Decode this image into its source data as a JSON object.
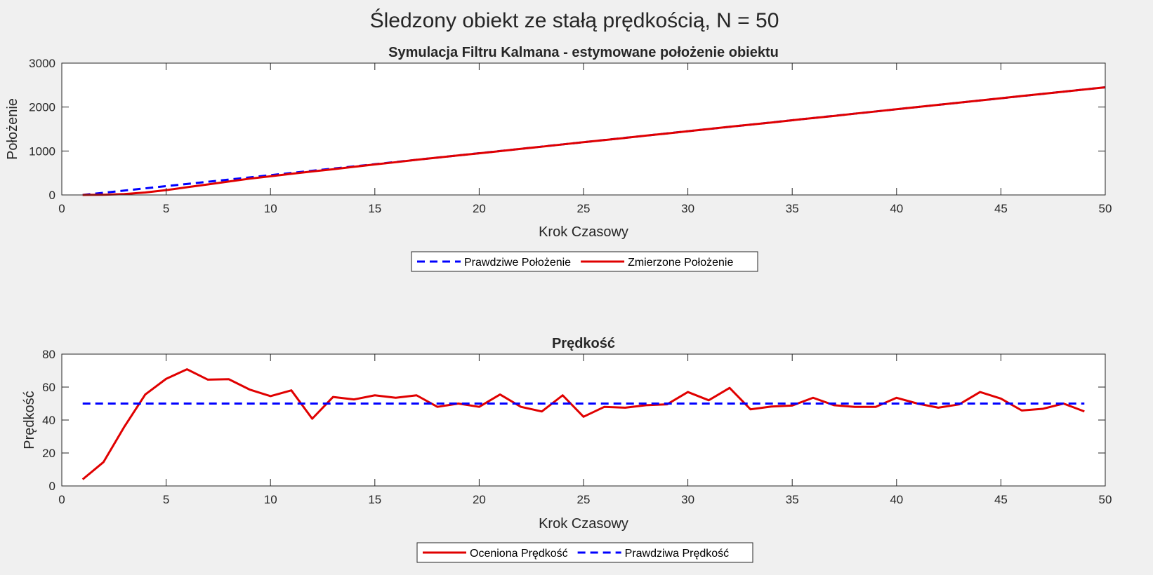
{
  "figure": {
    "title": "Śledzony obiekt ze stałą prędkością, N = 50"
  },
  "chart_data": [
    {
      "type": "line",
      "title": "Symulacja Filtru Kalmana - estymowane położenie obiektu",
      "xlabel": "Krok Czasowy",
      "ylabel": "Położenie",
      "xlim": [
        0,
        50
      ],
      "ylim": [
        0,
        3000
      ],
      "xticks": [
        0,
        5,
        10,
        15,
        20,
        25,
        30,
        35,
        40,
        45,
        50
      ],
      "yticks": [
        0,
        1000,
        2000,
        3000
      ],
      "grid": false,
      "legend_placement": "bottom-outside",
      "series": [
        {
          "name": "Prawdziwe Położenie",
          "color": "#0000ff",
          "style": "dashed",
          "x": [
            1,
            2,
            3,
            4,
            5,
            6,
            7,
            8,
            9,
            10,
            11,
            12,
            13,
            14,
            15,
            16,
            17,
            18,
            19,
            20,
            21,
            22,
            23,
            24,
            25,
            26,
            27,
            28,
            29,
            30,
            31,
            32,
            33,
            34,
            35,
            36,
            37,
            38,
            39,
            40,
            41,
            42,
            43,
            44,
            45,
            46,
            47,
            48,
            49,
            50
          ],
          "y": [
            0,
            50,
            100,
            150,
            200,
            250,
            300,
            350,
            400,
            450,
            500,
            550,
            600,
            650,
            700,
            750,
            800,
            850,
            900,
            950,
            1000,
            1050,
            1100,
            1150,
            1200,
            1250,
            1300,
            1350,
            1400,
            1450,
            1500,
            1550,
            1600,
            1650,
            1700,
            1750,
            1800,
            1850,
            1900,
            1950,
            2000,
            2050,
            2100,
            2150,
            2200,
            2250,
            2300,
            2350,
            2400,
            2450
          ]
        },
        {
          "name": "Zmierzone Położenie",
          "color": "#e00000",
          "style": "solid",
          "x": [
            1,
            2,
            3,
            4,
            5,
            6,
            7,
            8,
            9,
            10,
            11,
            12,
            13,
            14,
            15,
            16,
            17,
            18,
            19,
            20,
            21,
            22,
            23,
            24,
            25,
            26,
            27,
            28,
            29,
            30,
            31,
            32,
            33,
            34,
            35,
            36,
            37,
            38,
            39,
            40,
            41,
            42,
            43,
            44,
            45,
            46,
            47,
            48,
            49,
            50
          ],
          "y": [
            0,
            5,
            20,
            55,
            110,
            175,
            240,
            305,
            370,
            425,
            480,
            535,
            585,
            640,
            695,
            745,
            800,
            850,
            900,
            948,
            998,
            1050,
            1098,
            1150,
            1200,
            1248,
            1298,
            1350,
            1398,
            1450,
            1500,
            1552,
            1600,
            1648,
            1700,
            1750,
            1798,
            1850,
            1900,
            1950,
            2000,
            2050,
            2100,
            2150,
            2200,
            2252,
            2300,
            2350,
            2400,
            2450
          ]
        }
      ]
    },
    {
      "type": "line",
      "title": "Prędkość",
      "xlabel": "Krok Czasowy",
      "ylabel": "Prędkość",
      "xlim": [
        0,
        50
      ],
      "ylim": [
        0,
        80
      ],
      "xticks": [
        0,
        5,
        10,
        15,
        20,
        25,
        30,
        35,
        40,
        45,
        50
      ],
      "yticks": [
        0,
        20,
        40,
        60,
        80
      ],
      "grid": false,
      "legend_placement": "bottom-outside",
      "series": [
        {
          "name": "Oceniona Prędkość",
          "color": "#e00000",
          "style": "solid",
          "x": [
            1,
            2,
            3,
            4,
            5,
            6,
            7,
            8,
            9,
            10,
            11,
            12,
            13,
            14,
            15,
            16,
            17,
            18,
            19,
            20,
            21,
            22,
            23,
            24,
            25,
            26,
            27,
            28,
            29,
            30,
            31,
            32,
            33,
            34,
            35,
            36,
            37,
            38,
            39,
            40,
            41,
            42,
            43,
            44,
            45,
            46,
            47,
            48,
            49
          ],
          "y": [
            4,
            14.5,
            36,
            55.5,
            65,
            70.8,
            64.5,
            64.8,
            58.5,
            54.5,
            58,
            40.8,
            54,
            52.5,
            55,
            53.5,
            55,
            48,
            50,
            48,
            55.5,
            48,
            45.2,
            55,
            42,
            48,
            47.5,
            49,
            49.5,
            57,
            52,
            59.5,
            46.5,
            48.2,
            48.8,
            53.5,
            49,
            48,
            48,
            53.5,
            50,
            47.5,
            49.5,
            57,
            53,
            45.8,
            46.8,
            50,
            45.2
          ]
        },
        {
          "name": "Prawdziwa Prędkość",
          "color": "#0000ff",
          "style": "dashed",
          "x": [
            1,
            49
          ],
          "y": [
            50,
            50
          ]
        }
      ]
    }
  ]
}
